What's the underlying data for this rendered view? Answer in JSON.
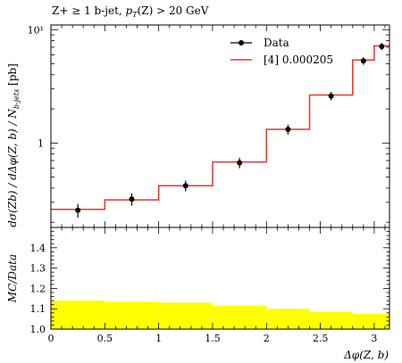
{
  "chart_data": {
    "type": "line",
    "title": "Z+ ≥ 1 b-jet, p_T(Z) > 20 GeV",
    "title_parts": {
      "pre": "Z+ ≥ 1 b-jet, ",
      "var": "p",
      "sub": "T",
      "post": "(Z) > 20 GeV"
    },
    "xlabel": "Δφ(Z, b)",
    "ylabel_top": "dσ(Zb)/dΔφ(Z, b)/N_b-jets [pb]",
    "ylabel_top_parts": {
      "main": "dσ(Zb) / dΔφ(Z, b) / N",
      "sub": "b-jets",
      "unit": " [pb]"
    },
    "ylabel_bottom": "MC/Data",
    "xlim": [
      0,
      3.1416
    ],
    "top_ylim": [
      0.18,
      11
    ],
    "top_yscale": "log",
    "bottom_ylim": [
      1.0,
      1.5
    ],
    "x_ticks": [
      "0",
      "0.5",
      "1",
      "1.5",
      "2",
      "2.5",
      "3"
    ],
    "top_y_ticks": [
      {
        "value": 1,
        "label": "1"
      },
      {
        "value": 10,
        "label": "10¹"
      }
    ],
    "bottom_y_ticks": [
      "1.0",
      "1.1",
      "1.2",
      "1.3",
      "1.4"
    ],
    "bin_edges": [
      0,
      0.5,
      1.0,
      1.5,
      2.0,
      2.4,
      2.8,
      3.0,
      3.1416
    ],
    "legend_placement": "top-right",
    "series": [
      {
        "name": "Data",
        "style": "points-with-errors",
        "color": "#000000",
        "x": [
          0.25,
          0.75,
          1.25,
          1.75,
          2.2,
          2.6,
          2.9,
          3.07
        ],
        "y": [
          0.255,
          0.32,
          0.42,
          0.67,
          1.32,
          2.6,
          5.3,
          7.1
        ],
        "yerr": [
          0.035,
          0.04,
          0.045,
          0.07,
          0.13,
          0.22,
          0.4,
          0.5
        ]
      },
      {
        "name": "[4] 0.000205",
        "style": "step",
        "color": "#e8352b",
        "y": [
          0.26,
          0.315,
          0.42,
          0.68,
          1.32,
          2.65,
          5.4,
          7.2
        ]
      }
    ],
    "ratio": {
      "color": "#ffff00",
      "band_upper": [
        1.14,
        1.135,
        1.13,
        1.115,
        1.1,
        1.085,
        1.075,
        1.075
      ],
      "band_lower": [
        1.0,
        1.0,
        1.0,
        1.0,
        1.0,
        1.0,
        1.0,
        1.0
      ]
    }
  }
}
